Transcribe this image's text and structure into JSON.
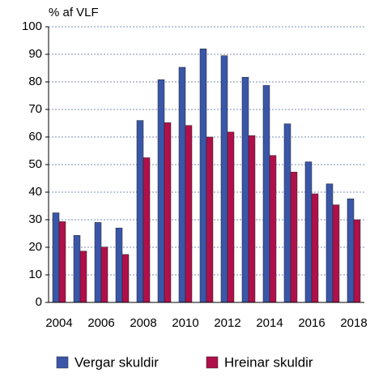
{
  "chart_data": {
    "type": "bar",
    "y_label": "% af VLF",
    "categories": [
      "2004",
      null,
      "2006",
      null,
      "2008",
      null,
      "2010",
      null,
      "2012",
      null,
      "2014",
      null,
      "2016",
      null,
      "2018"
    ],
    "series": [
      {
        "name": "Vergar skuldir",
        "color": "#3a56a8",
        "values": [
          32.5,
          24.3,
          29,
          27,
          66,
          80.8,
          85.3,
          92,
          89.5,
          81.7,
          78.7,
          64.8,
          51,
          43,
          37.6
        ]
      },
      {
        "name": "Hreinar skuldir",
        "color": "#b0104a",
        "values": [
          29.3,
          18.6,
          20.1,
          17.4,
          52.5,
          65.2,
          64.2,
          60,
          61.8,
          60.5,
          53.3,
          47.3,
          39.4,
          35.4,
          30
        ]
      }
    ],
    "ylim": [
      0,
      100
    ],
    "yticks": [
      0,
      10,
      20,
      30,
      40,
      50,
      60,
      70,
      80,
      90,
      100
    ],
    "grid": true,
    "legend": "bottom"
  }
}
